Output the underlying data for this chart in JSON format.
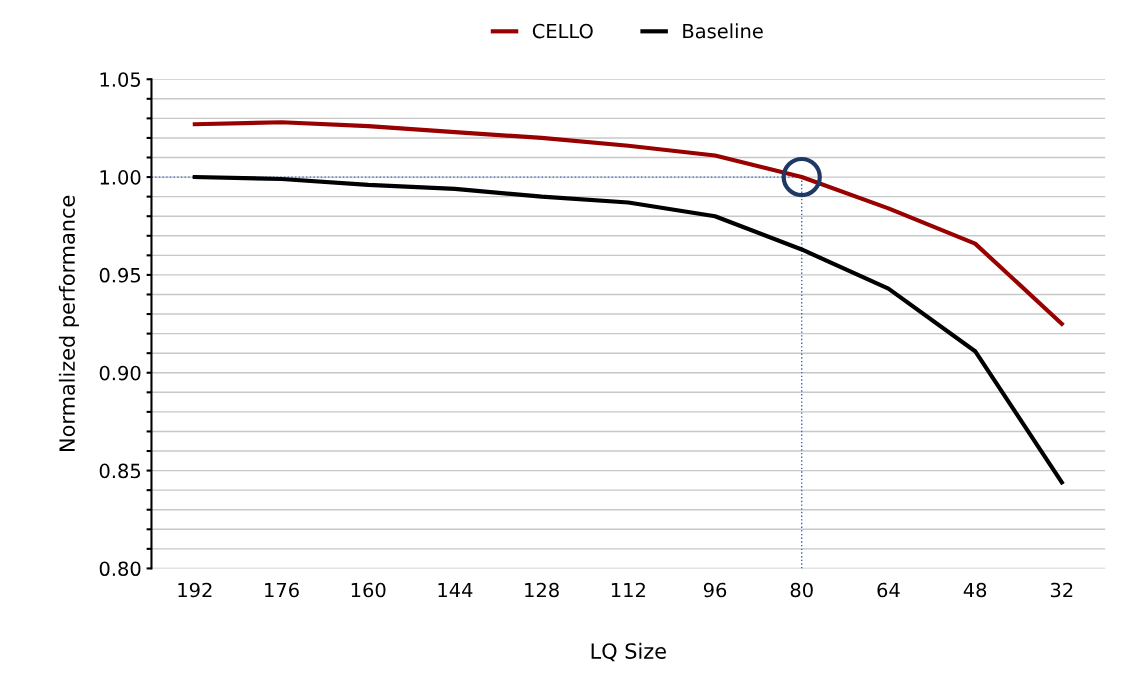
{
  "chart_data": {
    "type": "line",
    "xlabel": "LQ Size",
    "ylabel": "Normalized performance",
    "categories": [
      "192",
      "176",
      "160",
      "144",
      "128",
      "112",
      "96",
      "80",
      "64",
      "48",
      "32"
    ],
    "series": [
      {
        "name": "CELLO",
        "color": "#990000",
        "values": [
          1.027,
          1.028,
          1.026,
          1.023,
          1.02,
          1.016,
          1.011,
          1.0,
          0.984,
          0.966,
          0.925
        ]
      },
      {
        "name": "Baseline",
        "color": "#000000",
        "values": [
          1.0,
          0.999,
          0.996,
          0.994,
          0.99,
          0.987,
          0.98,
          0.963,
          0.943,
          0.911,
          0.844
        ]
      }
    ],
    "ylim": [
      0.8,
      1.05
    ],
    "yticks": [
      {
        "value": 0.8,
        "label": "0.80"
      },
      {
        "value": 0.81,
        "label": null
      },
      {
        "value": 0.82,
        "label": null
      },
      {
        "value": 0.83,
        "label": null
      },
      {
        "value": 0.84,
        "label": null
      },
      {
        "value": 0.85,
        "label": "0.85"
      },
      {
        "value": 0.86,
        "label": null
      },
      {
        "value": 0.87,
        "label": null
      },
      {
        "value": 0.88,
        "label": null
      },
      {
        "value": 0.89,
        "label": null
      },
      {
        "value": 0.9,
        "label": "0.90"
      },
      {
        "value": 0.91,
        "label": null
      },
      {
        "value": 0.92,
        "label": null
      },
      {
        "value": 0.93,
        "label": null
      },
      {
        "value": 0.94,
        "label": null
      },
      {
        "value": 0.95,
        "label": "0.95"
      },
      {
        "value": 0.96,
        "label": null
      },
      {
        "value": 0.97,
        "label": null
      },
      {
        "value": 0.98,
        "label": null
      },
      {
        "value": 0.99,
        "label": null
      },
      {
        "value": 1.0,
        "label": "1.00"
      },
      {
        "value": 1.01,
        "label": null
      },
      {
        "value": 1.02,
        "label": null
      },
      {
        "value": 1.03,
        "label": null
      },
      {
        "value": 1.04,
        "label": null
      },
      1.05
    ],
    "ref_lines": [
      {
        "axis": "y",
        "value": 1.0,
        "color": "#3366cc",
        "line_style": "dotted"
      },
      {
        "axis": "x",
        "value": "80",
        "color": "#3366cc",
        "line_style": "dotted"
      }
    ],
    "grid": "y",
    "legend": "top",
    "marker": "none",
    "line_style": "solid"
  }
}
